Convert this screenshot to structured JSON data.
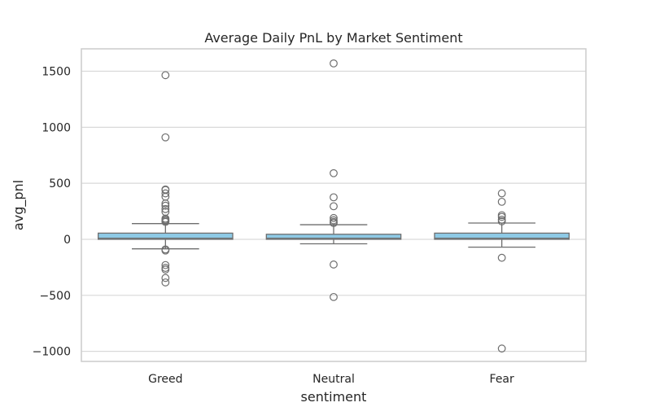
{
  "chart_data": {
    "type": "box",
    "title": "Average Daily PnL by Market Sentiment",
    "xlabel": "sentiment",
    "ylabel": "avg_pnl",
    "ylim": [
      -1090,
      1700
    ],
    "yticks": [
      -1000,
      -500,
      0,
      500,
      1000,
      1500
    ],
    "ytick_labels": [
      "−1000",
      "−500",
      "0",
      "500",
      "1000",
      "1500"
    ],
    "grid": "horizontal",
    "colors": {
      "box_fill": "#8ecae6",
      "box_edge": "#6e6e6e",
      "grid": "#d9d9d9",
      "frame": "#cccccc"
    },
    "categories": [
      "Greed",
      "Neutral",
      "Fear"
    ],
    "boxes": [
      {
        "category": "Greed",
        "whisker_low": -85,
        "q1": 0,
        "median": 10,
        "q3": 55,
        "whisker_high": 140,
        "outliers": [
          1465,
          910,
          445,
          440,
          410,
          380,
          320,
          300,
          270,
          245,
          185,
          175,
          165,
          155,
          -90,
          -100,
          -230,
          -255,
          -270,
          -345,
          -385
        ]
      },
      {
        "category": "Neutral",
        "whisker_low": -40,
        "q1": 0,
        "median": 10,
        "q3": 45,
        "whisker_high": 130,
        "outliers": [
          1570,
          590,
          375,
          295,
          190,
          170,
          155,
          145,
          -225,
          -515
        ]
      },
      {
        "category": "Fear",
        "whisker_low": -70,
        "q1": 0,
        "median": 10,
        "q3": 55,
        "whisker_high": 145,
        "outliers": [
          410,
          335,
          215,
          200,
          175,
          160,
          -165,
          -975
        ]
      }
    ]
  }
}
